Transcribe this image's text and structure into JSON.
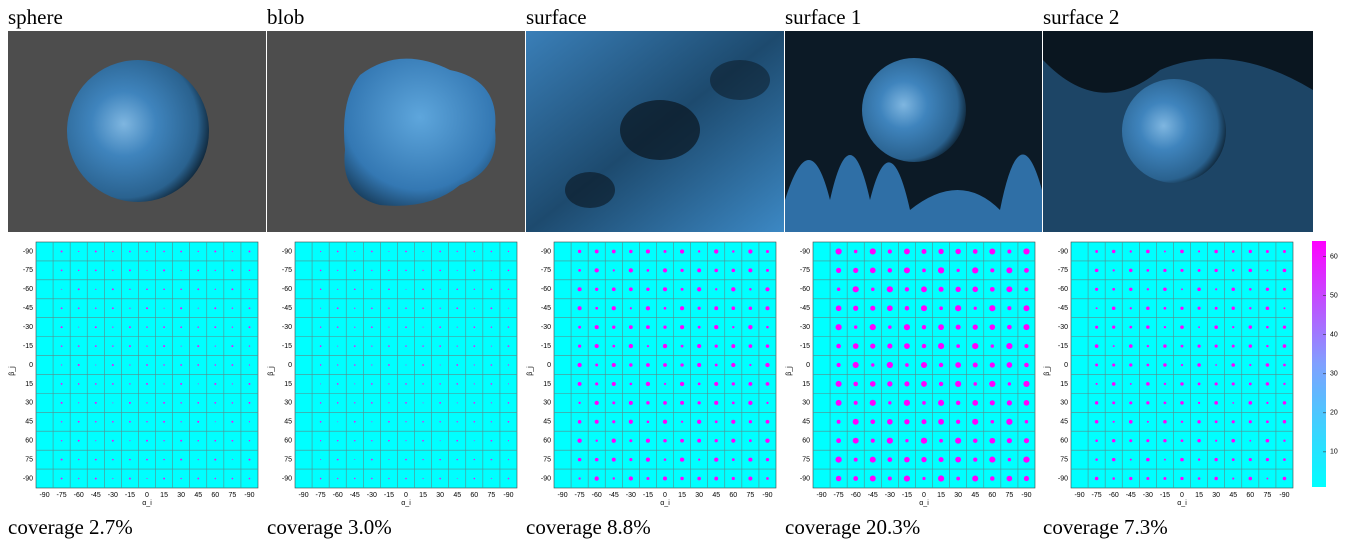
{
  "panels": [
    {
      "title": "sphere",
      "coverage": "coverage 2.7%"
    },
    {
      "title": "blob",
      "coverage": "coverage 3.0%"
    },
    {
      "title": "surface",
      "coverage": "coverage 8.8%"
    },
    {
      "title": "surface 1",
      "coverage": "coverage 20.3%"
    },
    {
      "title": "surface 2",
      "coverage": "coverage 7.3%"
    }
  ],
  "heatmap": {
    "x_label": "α_i",
    "y_label": "β_j",
    "x_ticks": [
      -90,
      -75,
      -60,
      -45,
      -30,
      -15,
      0,
      15,
      30,
      45,
      60,
      75,
      -90
    ],
    "y_ticks": [
      -90,
      -75,
      -60,
      -45,
      -30,
      -15,
      0,
      15,
      30,
      45,
      60,
      75,
      -90
    ]
  },
  "colorbar": {
    "lim": [
      1,
      64
    ],
    "ticks": [
      10,
      20,
      30,
      40,
      50,
      60
    ]
  }
}
